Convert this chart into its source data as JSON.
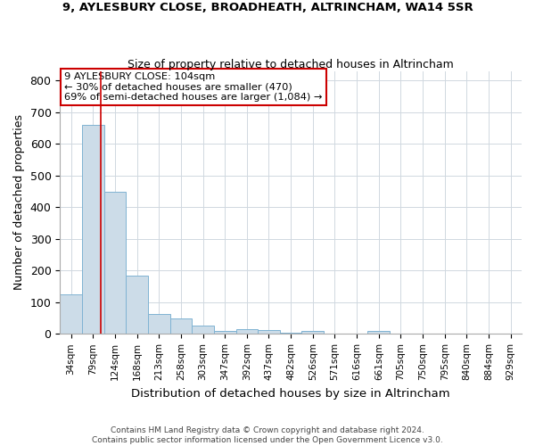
{
  "title1": "9, AYLESBURY CLOSE, BROADHEATH, ALTRINCHAM, WA14 5SR",
  "title2": "Size of property relative to detached houses in Altrincham",
  "xlabel": "Distribution of detached houses by size in Altrincham",
  "ylabel": "Number of detached properties",
  "footnote1": "Contains HM Land Registry data © Crown copyright and database right 2024.",
  "footnote2": "Contains public sector information licensed under the Open Government Licence v3.0.",
  "categories": [
    "34sqm",
    "79sqm",
    "124sqm",
    "168sqm",
    "213sqm",
    "258sqm",
    "303sqm",
    "347sqm",
    "392sqm",
    "437sqm",
    "482sqm",
    "526sqm",
    "571sqm",
    "616sqm",
    "661sqm",
    "705sqm",
    "750sqm",
    "795sqm",
    "840sqm",
    "884sqm",
    "929sqm"
  ],
  "values": [
    125,
    660,
    450,
    183,
    62,
    48,
    27,
    10,
    14,
    13,
    5,
    8,
    0,
    0,
    8,
    0,
    0,
    0,
    0,
    0,
    0
  ],
  "bar_color": "#ccdce8",
  "bar_edgecolor": "#7fb3d3",
  "vline_color": "#cc0000",
  "vline_x": 1.35,
  "annotation_title": "9 AYLESBURY CLOSE: 104sqm",
  "annotation_line2": "← 30% of detached houses are smaller (470)",
  "annotation_line3": "69% of semi-detached houses are larger (1,084) →",
  "annotation_box_color": "#cc0000",
  "ylim": [
    0,
    830
  ],
  "yticks": [
    0,
    100,
    200,
    300,
    400,
    500,
    600,
    700,
    800
  ]
}
